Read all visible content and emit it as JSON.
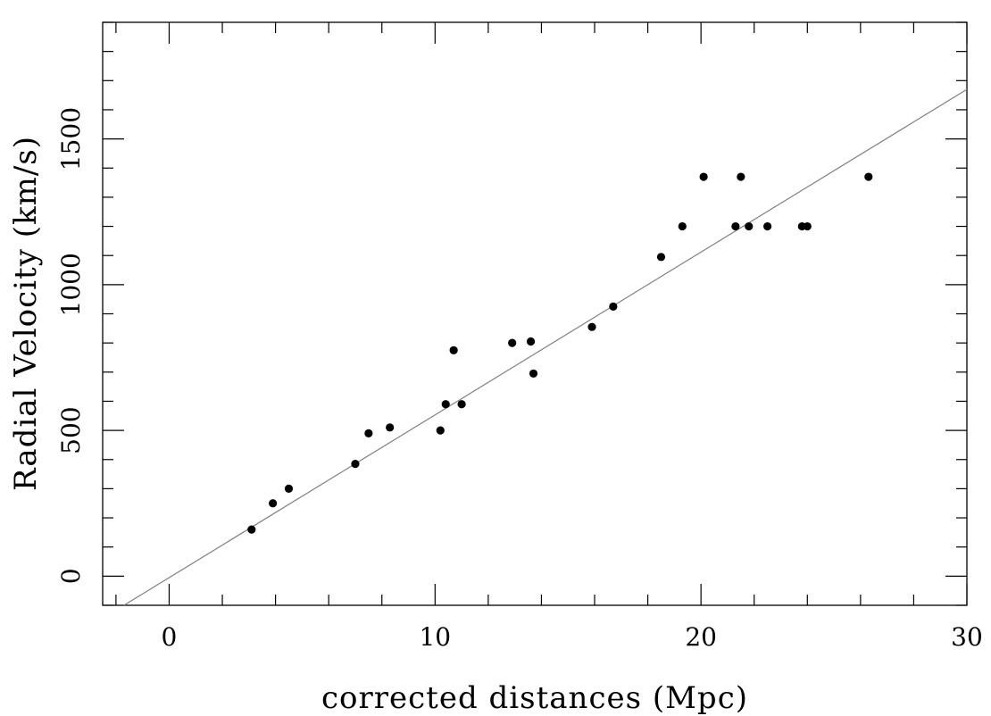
{
  "chart_data": {
    "type": "scatter",
    "title": "",
    "xlabel": "corrected distances (Mpc)",
    "ylabel": "Radial Velocity (km/s)",
    "xlim": [
      -2.5,
      30
    ],
    "ylim": [
      -100,
      1900
    ],
    "x_major_ticks": [
      0,
      10,
      20,
      30
    ],
    "x_minor_step": 2,
    "y_major_ticks": [
      0,
      500,
      1000,
      1500
    ],
    "y_minor_step": 100,
    "grid": false,
    "legend": "none",
    "colors": {
      "points": "#000000",
      "fit_line": "#808080",
      "frame": "#000000"
    },
    "points": [
      {
        "x": 3.1,
        "y": 160
      },
      {
        "x": 3.9,
        "y": 250
      },
      {
        "x": 4.5,
        "y": 300
      },
      {
        "x": 7.0,
        "y": 385
      },
      {
        "x": 7.5,
        "y": 490
      },
      {
        "x": 8.3,
        "y": 510
      },
      {
        "x": 10.2,
        "y": 500
      },
      {
        "x": 10.4,
        "y": 590
      },
      {
        "x": 10.7,
        "y": 775
      },
      {
        "x": 11.0,
        "y": 590
      },
      {
        "x": 12.9,
        "y": 800
      },
      {
        "x": 13.6,
        "y": 805
      },
      {
        "x": 13.7,
        "y": 695
      },
      {
        "x": 15.9,
        "y": 855
      },
      {
        "x": 16.7,
        "y": 925
      },
      {
        "x": 18.5,
        "y": 1095
      },
      {
        "x": 19.3,
        "y": 1200
      },
      {
        "x": 20.1,
        "y": 1370
      },
      {
        "x": 21.3,
        "y": 1200
      },
      {
        "x": 21.5,
        "y": 1370
      },
      {
        "x": 21.8,
        "y": 1200
      },
      {
        "x": 22.5,
        "y": 1200
      },
      {
        "x": 23.8,
        "y": 1200
      },
      {
        "x": 24.0,
        "y": 1200
      },
      {
        "x": 26.3,
        "y": 1370
      }
    ],
    "fit_line": {
      "x": [
        -1.7,
        30
      ],
      "y": [
        -100,
        1670
      ]
    }
  }
}
